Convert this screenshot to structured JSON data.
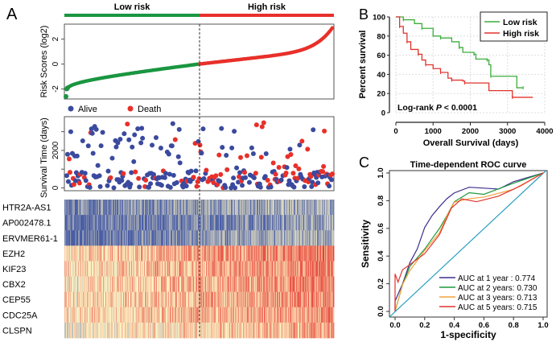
{
  "chart_data": [
    {
      "panel": "A",
      "type": "scatter",
      "groups": [
        "Low risk",
        "High risk"
      ],
      "group_colors": [
        "#1a9641",
        "#e8302a"
      ],
      "n_low": 168,
      "n_high": 167,
      "risk_plot": {
        "ylabel": "Risk Scores (log2)",
        "yticks": [
          "-2",
          "0",
          "2"
        ],
        "ylim": [
          -2.8,
          3.2
        ],
        "score_range": [
          -2.6,
          2.9
        ],
        "score_at_cutoff": 0
      }
    },
    {
      "panel": "A",
      "type": "scatter",
      "ylabel": "Survival Time (days)",
      "yticks": [
        "0",
        "2000"
      ],
      "ylim": [
        -150,
        3800
      ],
      "legend": [
        {
          "name": "Alive",
          "color": "#3a4a9e"
        },
        {
          "name": "Death",
          "color": "#e8302a"
        }
      ],
      "death_rate_low": 0.22,
      "death_rate_high": 0.45
    },
    {
      "panel": "A",
      "type": "heatmap",
      "genes": [
        "HTR2A-AS1",
        "AP002478.1",
        "ERVMER61-1",
        "EZH2",
        "KIF23",
        "CBX2",
        "CEP55",
        "CDC25A",
        "CLSPN"
      ],
      "mean_level_low": [
        0.12,
        0.06,
        0.07,
        0.6,
        0.56,
        0.56,
        0.55,
        0.55,
        0.45
      ],
      "mean_level_high": [
        0.25,
        0.2,
        0.25,
        0.82,
        0.8,
        0.78,
        0.78,
        0.76,
        0.7
      ],
      "scale_colors": [
        "#4a5ea6",
        "#fcf4c4",
        "#e63a32"
      ]
    },
    {
      "panel": "B",
      "type": "line",
      "xlabel": "Overall Survival (days)",
      "ylabel": "Percent survival",
      "xlim": [
        0,
        4000
      ],
      "ylim": [
        0,
        100
      ],
      "xticks": [
        "0",
        "1000",
        "2000",
        "3000",
        "4000"
      ],
      "yticks": [
        "0",
        "20",
        "40",
        "60",
        "80",
        "100"
      ],
      "annotation_prefix": "Log-rank ",
      "annotation_p": "P",
      "annotation_suffix": " < 0.0001",
      "legend_position": "top-right",
      "series": [
        {
          "name": "Low risk",
          "color": "#3cae3c",
          "x": [
            0,
            200,
            500,
            700,
            1000,
            1200,
            1500,
            1700,
            1800,
            2100,
            2150,
            2450,
            2500,
            2550,
            3250,
            3420
          ],
          "y": [
            100,
            97,
            93,
            88,
            80,
            78,
            74,
            68,
            63,
            61,
            56,
            55,
            50,
            38,
            26,
            26
          ]
        },
        {
          "name": "High risk",
          "color": "#e0342e",
          "x": [
            0,
            100,
            200,
            300,
            400,
            600,
            700,
            800,
            1000,
            1200,
            1400,
            1500,
            1800,
            1850,
            2500,
            3130,
            3680
          ],
          "y": [
            100,
            90,
            83,
            74,
            66,
            61,
            55,
            50,
            46,
            42,
            36,
            34,
            33,
            31,
            23,
            16,
            16
          ]
        }
      ]
    },
    {
      "panel": "C",
      "type": "line",
      "title": "Time-dependent ROC curve",
      "xlabel": "1-specificity",
      "ylabel": "Sensitivity",
      "xlim": [
        0,
        1
      ],
      "ylim": [
        0,
        1
      ],
      "xticks": [
        "0.0",
        "0.2",
        "0.4",
        "0.6",
        "0.8",
        "1.0"
      ],
      "yticks": [
        "0.0",
        "0.2",
        "0.4",
        "0.6",
        "0.8",
        "1.0"
      ],
      "legend_position": "bottom-right",
      "diagonal_color": "#2a9fc0",
      "series": [
        {
          "name": "AUC at 1 year   : 0.774",
          "color": "#3b2e8c",
          "x": [
            0,
            0,
            0.05,
            0.1,
            0.15,
            0.2,
            0.25,
            0.3,
            0.35,
            0.4,
            0.5,
            0.7,
            0.8,
            1
          ],
          "y": [
            0,
            0.08,
            0.2,
            0.35,
            0.45,
            0.6,
            0.7,
            0.75,
            0.82,
            0.85,
            0.9,
            0.88,
            0.94,
            1
          ]
        },
        {
          "name": "AUC at 2 years: 0.730",
          "color": "#1f9a3e",
          "x": [
            0,
            0.05,
            0.1,
            0.2,
            0.3,
            0.35,
            0.4,
            0.5,
            0.6,
            0.8,
            1
          ],
          "y": [
            0,
            0.2,
            0.32,
            0.45,
            0.6,
            0.7,
            0.8,
            0.85,
            0.84,
            0.92,
            1
          ]
        },
        {
          "name": "AUC at 3 years: 0.713",
          "color": "#f4a23a",
          "x": [
            0,
            0.05,
            0.1,
            0.2,
            0.3,
            0.35,
            0.4,
            0.5,
            0.6,
            0.8,
            1
          ],
          "y": [
            0,
            0.2,
            0.3,
            0.43,
            0.56,
            0.68,
            0.78,
            0.82,
            0.82,
            0.88,
            1
          ]
        },
        {
          "name": "AUC at 5 years: 0.715",
          "color": "#e0342e",
          "x": [
            0,
            0,
            0.02,
            0.05,
            0.1,
            0.2,
            0.3,
            0.38,
            0.45,
            0.55,
            0.7,
            0.85,
            1
          ],
          "y": [
            0,
            0.28,
            0.22,
            0.31,
            0.33,
            0.42,
            0.55,
            0.75,
            0.82,
            0.8,
            0.83,
            0.9,
            1
          ]
        }
      ]
    }
  ],
  "labels": {
    "a": "A",
    "b": "B",
    "c": "C"
  }
}
